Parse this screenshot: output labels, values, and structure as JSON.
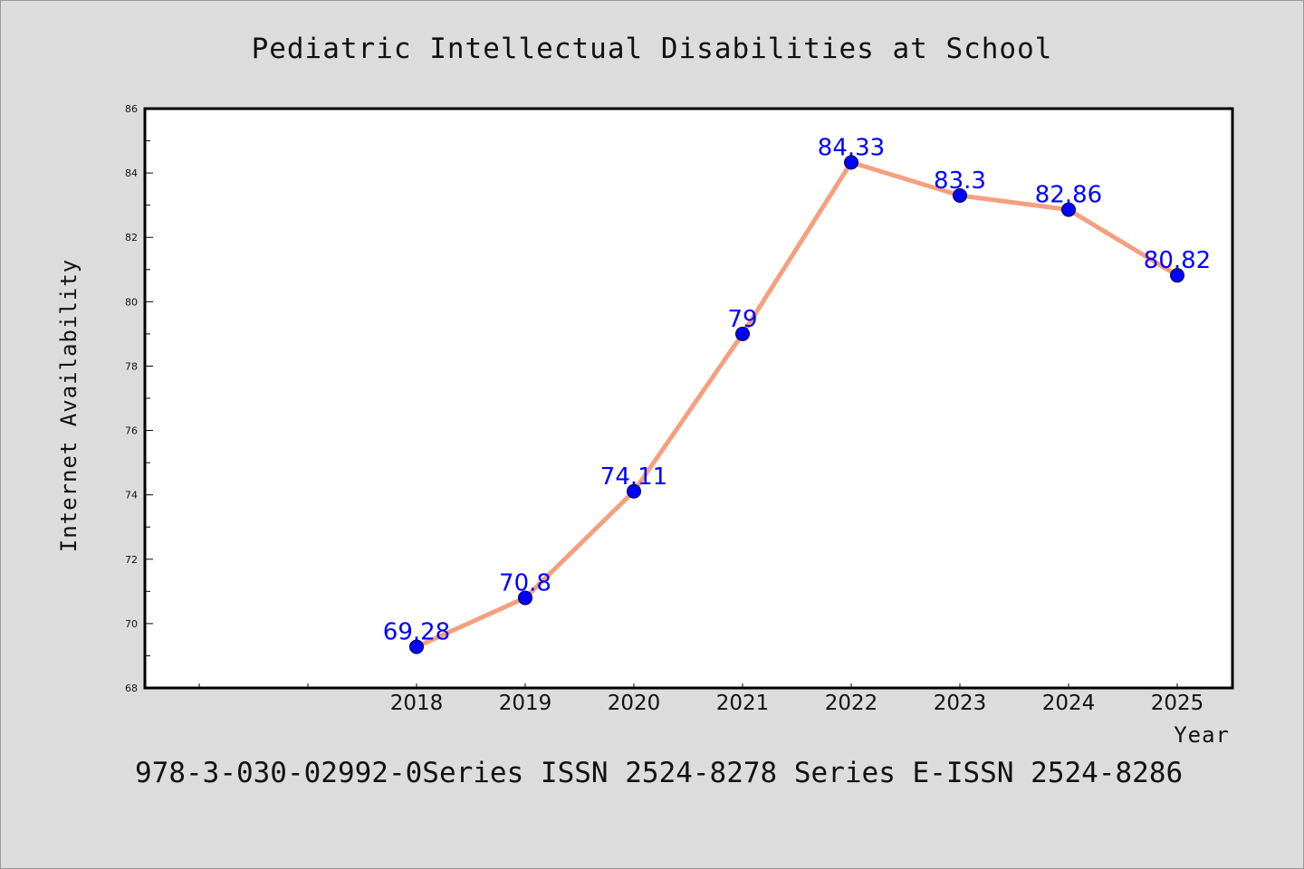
{
  "colors": {
    "background": "#dcdcdc",
    "plot_background": "#ffffff",
    "line": "#f4a07f",
    "marker": "#0000ff",
    "data_label": "#0000ff"
  },
  "footer": "978-3-030-02992-0Series ISSN 2524-8278 Series E-ISSN 2524-8286",
  "chart_data": {
    "type": "line",
    "title": "Pediatric Intellectual Disabilities at School",
    "xlabel": "Year",
    "ylabel": "Internet Availability",
    "categories": [
      "2018",
      "2019",
      "2020",
      "2021",
      "2022",
      "2023",
      "2024",
      "2025"
    ],
    "values": [
      69.28,
      70.8,
      74.11,
      79,
      84.33,
      83.3,
      82.86,
      80.82
    ],
    "data_labels": [
      "69.28",
      "70.8",
      "74.11",
      "79",
      "84.33",
      "83.3",
      "82.86",
      "80.82"
    ],
    "ylim": [
      68,
      86
    ],
    "yticks": [
      "68",
      "70",
      "72",
      "74",
      "76",
      "78",
      "80",
      "82",
      "84",
      "86"
    ],
    "grid": false,
    "legend": "none",
    "markers": true
  }
}
